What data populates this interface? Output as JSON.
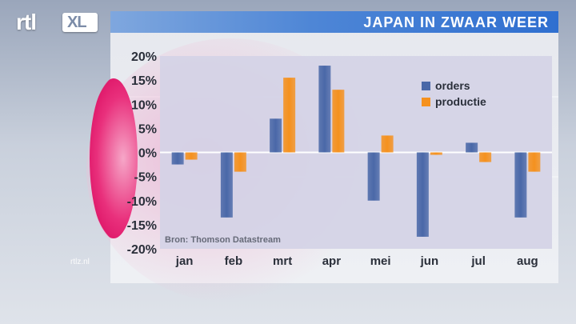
{
  "header": {
    "title": "JAPAN IN ZWAAR WEER"
  },
  "logo": {
    "brand": "rtl",
    "suffix": "XL"
  },
  "footer": {
    "site": "rtlz.nl"
  },
  "source_note": "Bron: Thomson Datastream",
  "colors": {
    "orders": "#4a68a8",
    "productie": "#f5911e",
    "title_bar": "#3e7bd4",
    "zero_line": "#ffffff"
  },
  "chart_data": {
    "type": "bar",
    "title": "JAPAN IN ZWAAR WEER",
    "categories": [
      "jan",
      "feb",
      "mrt",
      "apr",
      "mei",
      "jun",
      "jul",
      "aug"
    ],
    "series": [
      {
        "name": "orders",
        "values": [
          -2.5,
          -13.5,
          7,
          18,
          -10,
          -17.5,
          2,
          -13.5
        ]
      },
      {
        "name": "productie",
        "values": [
          -1.5,
          -4,
          15.5,
          13,
          3.5,
          -0.5,
          -2,
          -4
        ]
      }
    ],
    "yticks": [
      "20%",
      "15%",
      "10%",
      "5%",
      "0%",
      "-5%",
      "-10%",
      "-15%",
      "-20%"
    ],
    "ylim": [
      -20,
      20
    ],
    "legend": "top-right",
    "grid": false
  }
}
